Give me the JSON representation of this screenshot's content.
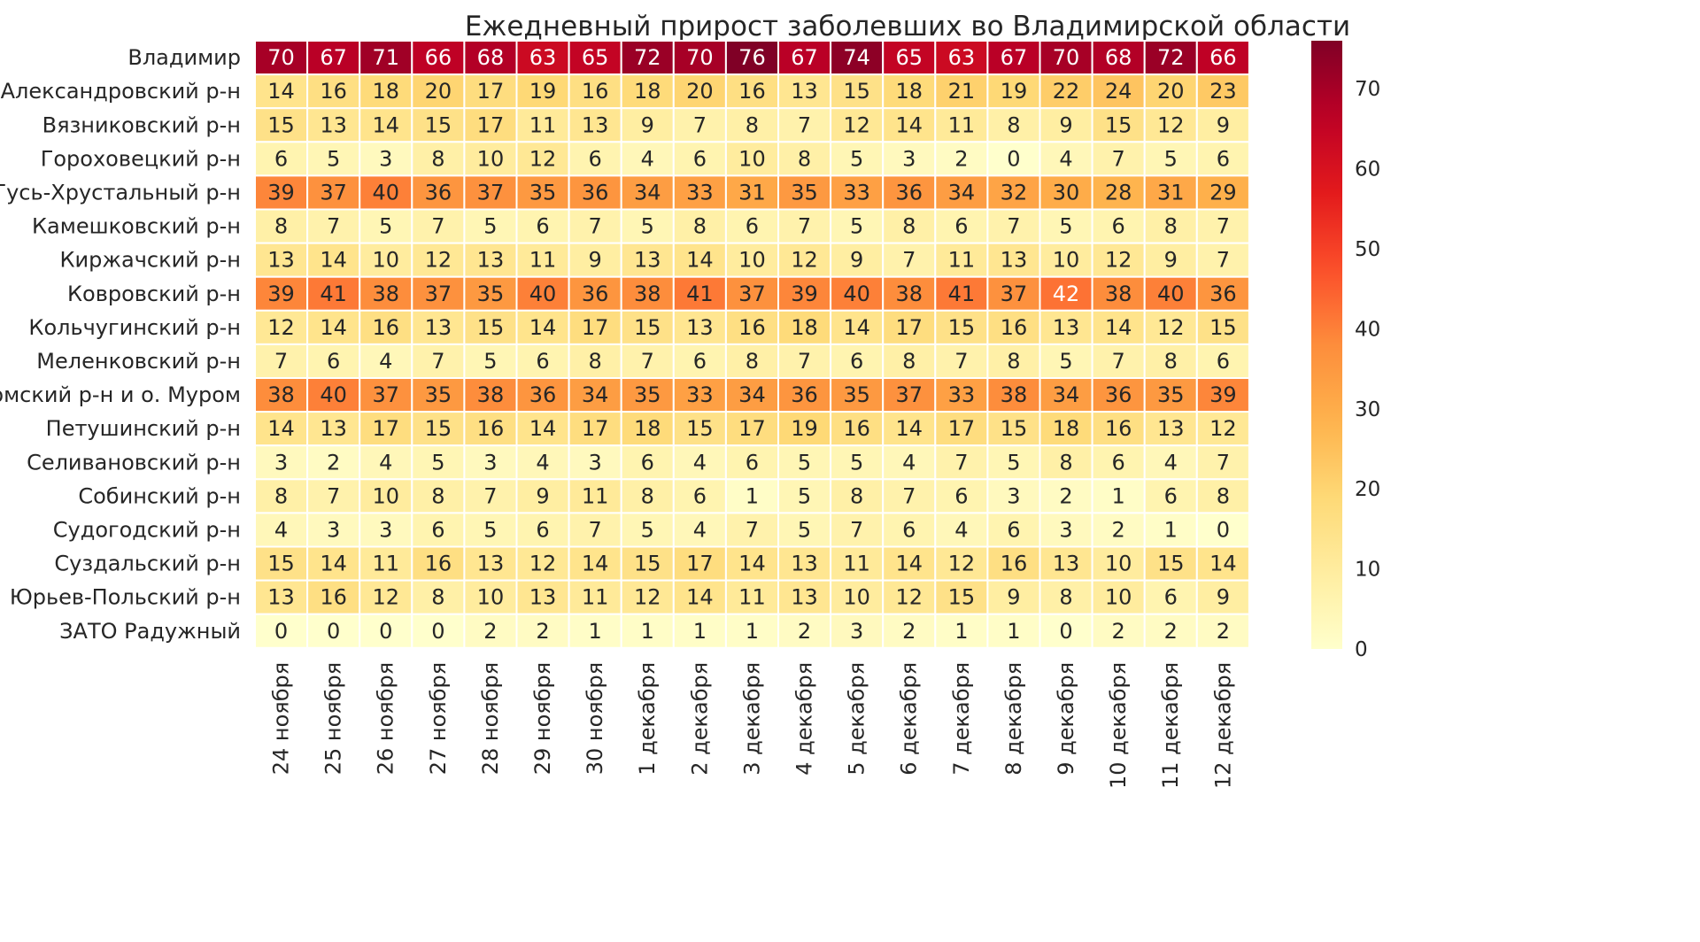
{
  "chart_data": {
    "type": "heatmap",
    "title": "Ежедневный прирост заболевших во Владимирской области",
    "xlabel": "",
    "ylabel": "",
    "x": [
      "24 ноября",
      "25 ноября",
      "26 ноября",
      "27 ноября",
      "28 ноября",
      "29 ноября",
      "30 ноября",
      "1 декабря",
      "2 декабря",
      "3 декабря",
      "4 декабря",
      "5 декабря",
      "6 декабря",
      "7 декабря",
      "8 декабря",
      "9 декабря",
      "10 декабря",
      "11 декабря",
      "12 декабря"
    ],
    "y": [
      "Владимир",
      "Александровский р-н",
      "Вязниковский р-н",
      "Гороховецкий р-н",
      "Гусь-Хрустальный р-н",
      "Камешковский р-н",
      "Киржачский р-н",
      "Ковровский р-н",
      "Кольчугинский р-н",
      "Меленковский р-н",
      "Муромский р-н и о. Муром",
      "Петушинский р-н",
      "Селивановский р-н",
      "Собинский р-н",
      "Судогодский р-н",
      "Суздальский р-н",
      "Юрьев-Польский р-н",
      "ЗАТО Радужный"
    ],
    "values": [
      [
        70,
        67,
        71,
        66,
        68,
        63,
        65,
        72,
        70,
        76,
        67,
        74,
        65,
        63,
        67,
        70,
        68,
        72,
        66
      ],
      [
        14,
        16,
        18,
        20,
        17,
        19,
        16,
        18,
        20,
        16,
        13,
        15,
        18,
        21,
        19,
        22,
        24,
        20,
        23
      ],
      [
        15,
        13,
        14,
        15,
        17,
        11,
        13,
        9,
        7,
        8,
        7,
        12,
        14,
        11,
        8,
        9,
        15,
        12,
        9
      ],
      [
        6,
        5,
        3,
        8,
        10,
        12,
        6,
        4,
        6,
        10,
        8,
        5,
        3,
        2,
        0,
        4,
        7,
        5,
        6
      ],
      [
        39,
        37,
        40,
        36,
        37,
        35,
        36,
        34,
        33,
        31,
        35,
        33,
        36,
        34,
        32,
        30,
        28,
        31,
        29
      ],
      [
        8,
        7,
        5,
        7,
        5,
        6,
        7,
        5,
        8,
        6,
        7,
        5,
        8,
        6,
        7,
        5,
        6,
        8,
        7
      ],
      [
        13,
        14,
        10,
        12,
        13,
        11,
        9,
        13,
        14,
        10,
        12,
        9,
        7,
        11,
        13,
        10,
        12,
        9,
        7
      ],
      [
        39,
        41,
        38,
        37,
        35,
        40,
        36,
        38,
        41,
        37,
        39,
        40,
        38,
        41,
        37,
        42,
        38,
        40,
        36
      ],
      [
        12,
        14,
        16,
        13,
        15,
        14,
        17,
        15,
        13,
        16,
        18,
        14,
        17,
        15,
        16,
        13,
        14,
        12,
        15
      ],
      [
        7,
        6,
        4,
        7,
        5,
        6,
        8,
        7,
        6,
        8,
        7,
        6,
        8,
        7,
        8,
        5,
        7,
        8,
        6
      ],
      [
        38,
        40,
        37,
        35,
        38,
        36,
        34,
        35,
        33,
        34,
        36,
        35,
        37,
        33,
        38,
        34,
        36,
        35,
        39
      ],
      [
        14,
        13,
        17,
        15,
        16,
        14,
        17,
        18,
        15,
        17,
        19,
        16,
        14,
        17,
        15,
        18,
        16,
        13,
        12
      ],
      [
        3,
        2,
        4,
        5,
        3,
        4,
        3,
        6,
        4,
        6,
        5,
        5,
        4,
        7,
        5,
        8,
        6,
        4,
        7
      ],
      [
        8,
        7,
        10,
        8,
        7,
        9,
        11,
        8,
        6,
        1,
        5,
        8,
        7,
        6,
        3,
        2,
        1,
        6,
        8
      ],
      [
        4,
        3,
        3,
        6,
        5,
        6,
        7,
        5,
        4,
        7,
        5,
        7,
        6,
        4,
        6,
        3,
        2,
        1,
        0
      ],
      [
        15,
        14,
        11,
        16,
        13,
        12,
        14,
        15,
        17,
        14,
        13,
        11,
        14,
        12,
        16,
        13,
        10,
        15,
        14
      ],
      [
        13,
        16,
        12,
        8,
        10,
        13,
        11,
        12,
        14,
        11,
        13,
        10,
        12,
        15,
        9,
        8,
        10,
        6,
        9
      ],
      [
        0,
        0,
        0,
        0,
        2,
        2,
        1,
        1,
        1,
        1,
        2,
        3,
        2,
        1,
        1,
        0,
        2,
        2,
        2
      ]
    ],
    "vmin": 0,
    "vmax": 76,
    "colormap": "YlOrRd",
    "colorbar_ticks": [
      0,
      10,
      20,
      30,
      40,
      50,
      60,
      70
    ],
    "colors": {
      "low": "#ffffcc",
      "high": "#800026",
      "cell_border": "#ffffff",
      "text_dark": "#262626",
      "text_light": "#ffffff"
    }
  }
}
